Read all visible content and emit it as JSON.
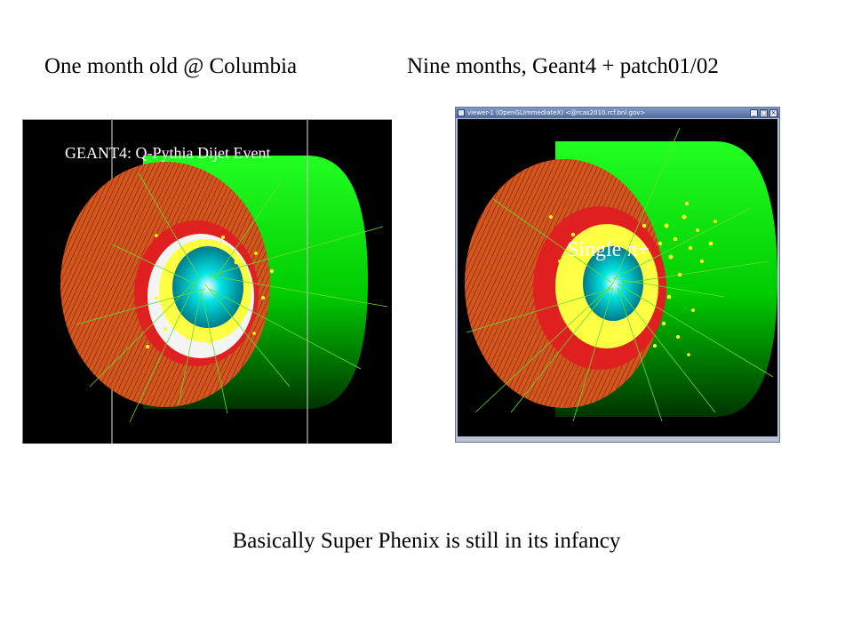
{
  "headings": {
    "left": "One month old @ Columbia",
    "right": "Nine months, Geant4 + patch01/02"
  },
  "left_panel": {
    "label": "GEANT4: Q-Pythia Dijet Event"
  },
  "right_window": {
    "title": "viewer-1 (OpenGLImmediateX) <@rcas2010.rcf.bnl.gov>",
    "label": "Single π+",
    "buttons": {
      "minimize": "_",
      "maximize": "□",
      "close": "×"
    }
  },
  "caption": "Basically Super Phenix is still in its infancy",
  "colors": {
    "background": "#000000",
    "calorimeter_green": "#00e000",
    "sampling_red": "#d83a10",
    "track_green": "#6edc2e",
    "hit_yellow": "#ffff22",
    "inner_cyan": "#00d9d9"
  }
}
